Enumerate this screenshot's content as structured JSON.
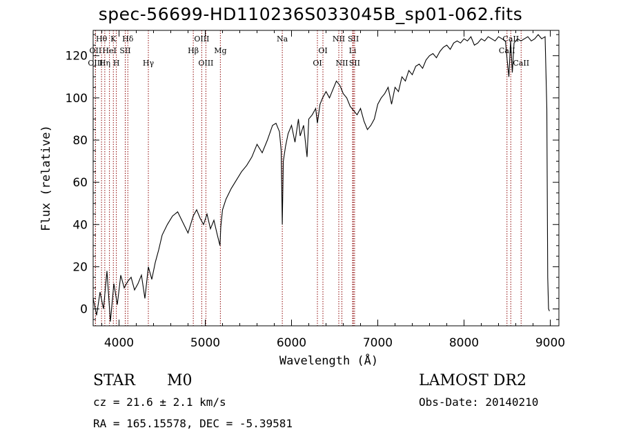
{
  "title": "spec-56699-HD110236S033045B_sp01-062.fits",
  "footer": {
    "object_class": "STAR",
    "subclass": "M0",
    "redshift_line": "cz = 21.6 ± 2.1 km/s",
    "coords_line": "RA = 165.15578, DEC =  -5.39581",
    "survey": "LAMOST DR2",
    "obs_date": "Obs-Date: 20140210"
  },
  "chart_data": {
    "type": "line",
    "title": "spec-56699-HD110236S033045B_sp01-062.fits",
    "xlabel": "Wavelength (Å)",
    "ylabel": "Flux (relative)",
    "xlim": [
      3700,
      9100
    ],
    "ylim": [
      -8,
      132
    ],
    "xticks": [
      4000,
      5000,
      6000,
      7000,
      8000,
      9000
    ],
    "yticks": [
      0,
      20,
      40,
      60,
      80,
      100,
      120
    ],
    "grid": false,
    "line_color": "#000000",
    "marker_color": "#8b0000",
    "series": [
      {
        "x": [
          3700,
          3740,
          3780,
          3820,
          3860,
          3900,
          3940,
          3980,
          4020,
          4060,
          4100,
          4140,
          4180,
          4220,
          4260,
          4300,
          4340,
          4380,
          4420,
          4460,
          4500,
          4560,
          4620,
          4680,
          4740,
          4800,
          4860,
          4900,
          4940,
          4980,
          5020,
          5060,
          5100,
          5140,
          5170,
          5180,
          5200,
          5240,
          5300,
          5360,
          5420,
          5480,
          5540,
          5600,
          5660,
          5720,
          5780,
          5820,
          5860,
          5880,
          5893,
          5905,
          5930,
          5960,
          6000,
          6040,
          6080,
          6100,
          6140,
          6180,
          6200,
          6240,
          6280,
          6300,
          6330,
          6360,
          6400,
          6440,
          6480,
          6520,
          6560,
          6600,
          6640,
          6680,
          6720,
          6760,
          6800,
          6840,
          6880,
          6920,
          6960,
          7000,
          7040,
          7080,
          7120,
          7160,
          7200,
          7240,
          7280,
          7320,
          7360,
          7400,
          7440,
          7480,
          7520,
          7560,
          7600,
          7640,
          7680,
          7720,
          7760,
          7800,
          7840,
          7880,
          7920,
          7960,
          8000,
          8040,
          8080,
          8120,
          8160,
          8200,
          8240,
          8280,
          8320,
          8360,
          8400,
          8440,
          8480,
          8500,
          8520,
          8540,
          8560,
          8580,
          8620,
          8660,
          8700,
          8740,
          8780,
          8820,
          8860,
          8900,
          8940,
          8960,
          8970,
          8980,
          8990
        ],
        "y": [
          5,
          -3,
          8,
          0,
          18,
          -6,
          12,
          2,
          16,
          10,
          13,
          15,
          9,
          12,
          16,
          5,
          20,
          14,
          22,
          28,
          35,
          40,
          44,
          46,
          41,
          36,
          44,
          47,
          43,
          40,
          45,
          38,
          42,
          35,
          30,
          39,
          47,
          52,
          57,
          61,
          65,
          68,
          72,
          78,
          74,
          80,
          87,
          88,
          84,
          75,
          40,
          70,
          77,
          83,
          87,
          79,
          90,
          82,
          87,
          72,
          90,
          92,
          95,
          88,
          97,
          100,
          103,
          100,
          104,
          108,
          106,
          102,
          100,
          96,
          94,
          92,
          95,
          89,
          85,
          87,
          90,
          97,
          100,
          102,
          105,
          97,
          105,
          103,
          110,
          108,
          113,
          111,
          115,
          116,
          114,
          118,
          120,
          121,
          119,
          122,
          124,
          125,
          123,
          126,
          127,
          126,
          128,
          127,
          129,
          125,
          126,
          128,
          127,
          129,
          128,
          127,
          129,
          128,
          127,
          118,
          110,
          127,
          112,
          126,
          128,
          127,
          128,
          129,
          127,
          128,
          130,
          128,
          129,
          95,
          15,
          0,
          -1
        ]
      }
    ],
    "line_markers": [
      {
        "label": "Hθ",
        "x": 3797,
        "row": 0
      },
      {
        "label": "K",
        "x": 3934,
        "row": 0
      },
      {
        "label": "Hδ",
        "x": 4102,
        "row": 0
      },
      {
        "label": "OII",
        "x": 3727,
        "row": 1
      },
      {
        "label": "HeI",
        "x": 3889,
        "row": 1
      },
      {
        "label": "SII",
        "x": 4072,
        "row": 1
      },
      {
        "label": "OIII",
        "x": 3727,
        "row": 2
      },
      {
        "label": "Hη",
        "x": 3835,
        "row": 2
      },
      {
        "label": "H",
        "x": 3969,
        "row": 2
      },
      {
        "label": "Hγ",
        "x": 4340,
        "row": 2
      },
      {
        "label": "OIII",
        "x": 4959,
        "row": 0
      },
      {
        "label": "Hβ",
        "x": 4861,
        "row": 1
      },
      {
        "label": "Mg",
        "x": 5175,
        "row": 1
      },
      {
        "label": "OIII",
        "x": 5007,
        "row": 2
      },
      {
        "label": "Na",
        "x": 5893,
        "row": 0
      },
      {
        "label": "OI",
        "x": 6364,
        "row": 1
      },
      {
        "label": "OI",
        "x": 6300,
        "row": 2
      },
      {
        "label": "NII",
        "x": 6548,
        "row": 0
      },
      {
        "label": "SII",
        "x": 6717,
        "row": 0
      },
      {
        "label": "Li",
        "x": 6708,
        "row": 1
      },
      {
        "label": "NII",
        "x": 6584,
        "row": 2
      },
      {
        "label": "SII",
        "x": 6731,
        "row": 2
      },
      {
        "label": "CaII",
        "x": 8542,
        "row": 0
      },
      {
        "label": "CaII",
        "x": 8498,
        "row": 1
      },
      {
        "label": "CaII",
        "x": 8662,
        "row": 2
      }
    ]
  }
}
